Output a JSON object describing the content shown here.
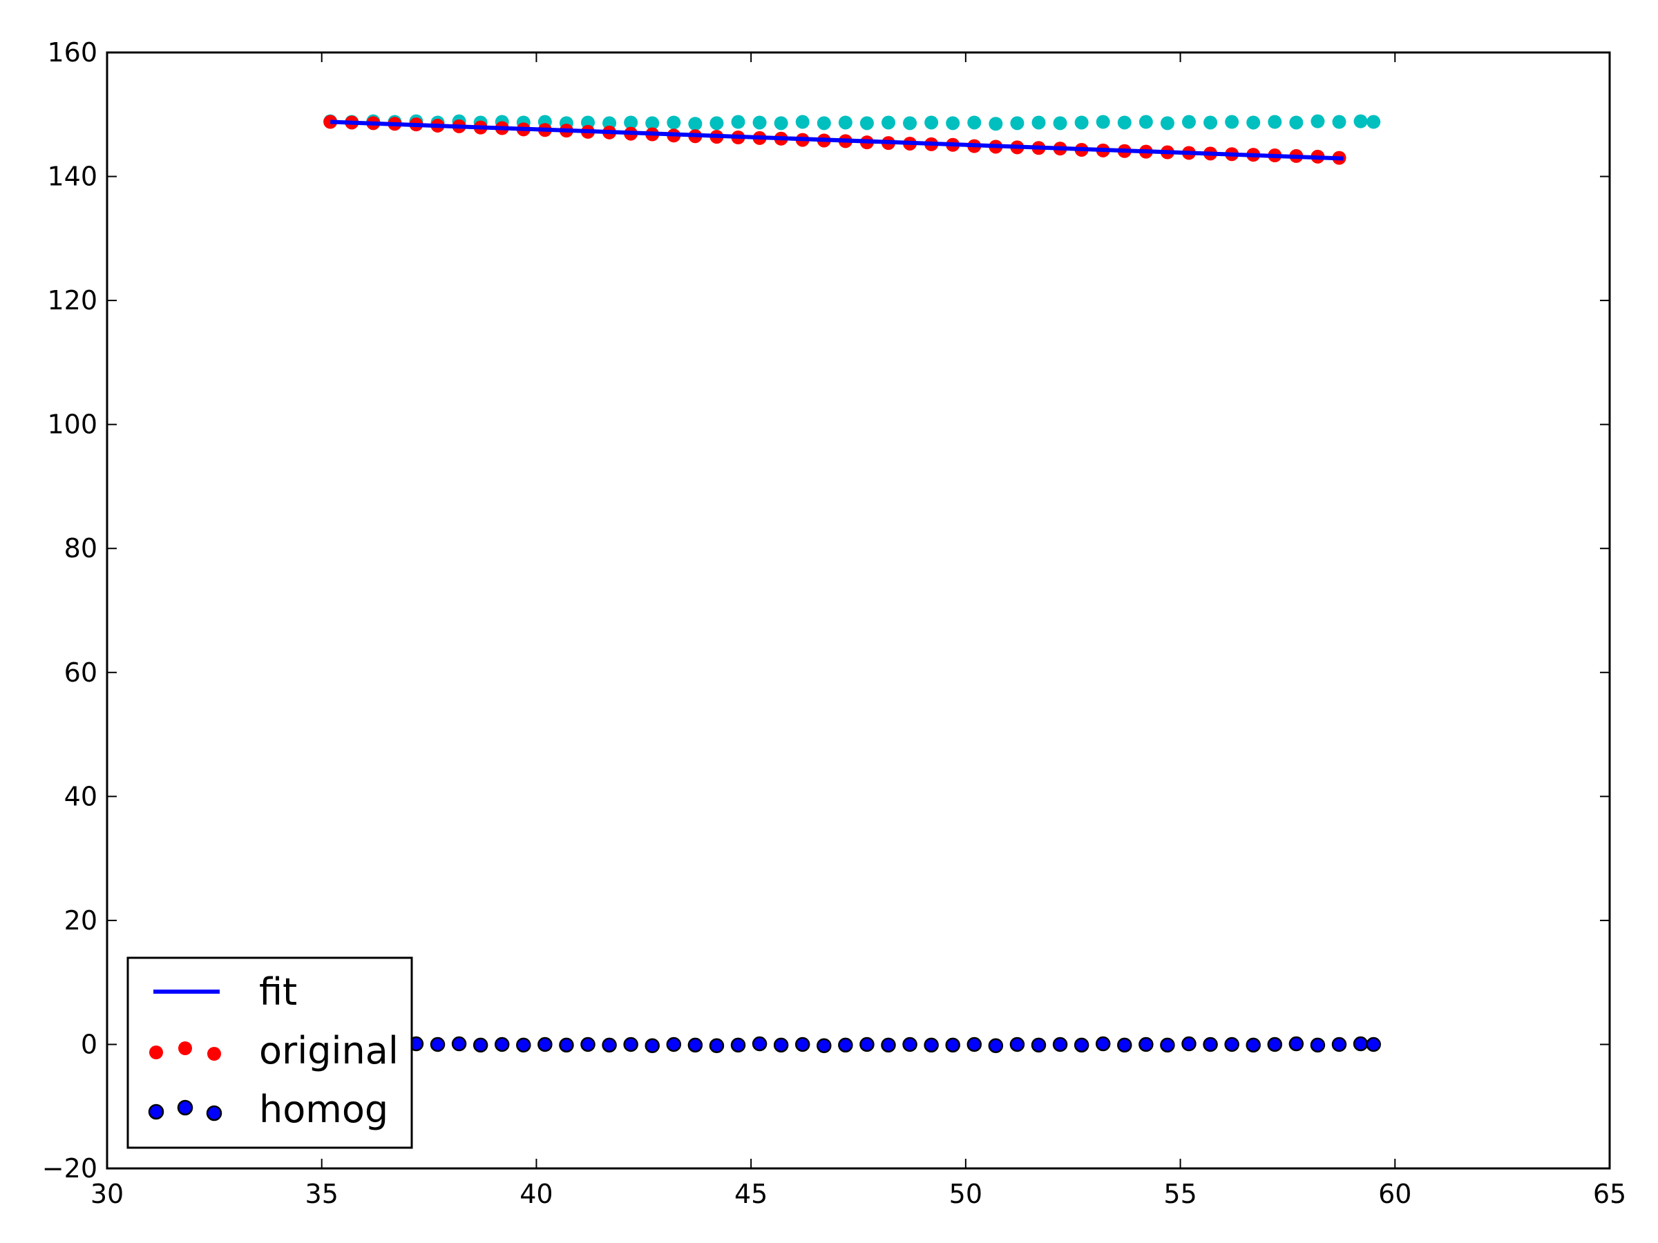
{
  "chart_data": {
    "type": "scatter",
    "title": "",
    "xlabel": "",
    "ylabel": "",
    "xlim": [
      30,
      65
    ],
    "ylim": [
      -20,
      160
    ],
    "x_ticks": [
      "30",
      "35",
      "40",
      "45",
      "50",
      "55",
      "60",
      "65"
    ],
    "y_ticks": [
      "−20",
      "0",
      "20",
      "40",
      "60",
      "80",
      "100",
      "120",
      "140",
      "160"
    ],
    "legend_position": "lower-left",
    "grid": false,
    "colors": {
      "fit": "#0000ff",
      "original": "#ff0000",
      "homog": "#0000ff",
      "cyan_series": "#00bfbf"
    },
    "series": [
      {
        "name": "fit",
        "kind": "line",
        "x": [
          35.2,
          58.8
        ],
        "y": [
          148.8,
          142.9
        ]
      },
      {
        "name": "original",
        "kind": "scatter",
        "x": [
          35.2,
          35.7,
          36.2,
          36.7,
          37.2,
          37.7,
          38.2,
          38.7,
          39.2,
          39.7,
          40.2,
          40.7,
          41.2,
          41.7,
          42.2,
          42.7,
          43.2,
          43.7,
          44.2,
          44.7,
          45.2,
          45.7,
          46.2,
          46.7,
          47.2,
          47.7,
          48.2,
          48.7,
          49.2,
          49.7,
          50.2,
          50.7,
          51.2,
          51.7,
          52.2,
          52.7,
          53.2,
          53.7,
          54.2,
          54.7,
          55.2,
          55.7,
          56.2,
          56.7,
          57.2,
          57.7,
          58.2,
          58.7
        ],
        "y": [
          148.8,
          148.7,
          148.6,
          148.5,
          148.4,
          148.2,
          148.1,
          147.9,
          147.8,
          147.6,
          147.5,
          147.4,
          147.2,
          147.1,
          146.9,
          146.8,
          146.6,
          146.5,
          146.4,
          146.3,
          146.2,
          146.1,
          145.9,
          145.8,
          145.7,
          145.5,
          145.4,
          145.3,
          145.2,
          145.1,
          144.9,
          144.8,
          144.7,
          144.6,
          144.5,
          144.3,
          144.2,
          144.1,
          144.0,
          143.9,
          143.8,
          143.7,
          143.6,
          143.5,
          143.4,
          143.3,
          143.2,
          143.0
        ]
      },
      {
        "name": "",
        "kind": "scatter",
        "x": [
          35.2,
          35.7,
          36.2,
          36.7,
          37.2,
          37.7,
          38.2,
          38.7,
          39.2,
          39.7,
          40.2,
          40.7,
          41.2,
          41.7,
          42.2,
          42.7,
          43.2,
          43.7,
          44.2,
          44.7,
          45.2,
          45.7,
          46.2,
          46.7,
          47.2,
          47.7,
          48.2,
          48.7,
          49.2,
          49.7,
          50.2,
          50.7,
          51.2,
          51.7,
          52.2,
          52.7,
          53.2,
          53.7,
          54.2,
          54.7,
          55.2,
          55.7,
          56.2,
          56.7,
          57.2,
          57.7,
          58.2,
          58.7,
          59.2,
          59.5
        ],
        "y": [
          148.9,
          148.8,
          148.9,
          148.8,
          148.9,
          148.7,
          148.9,
          148.7,
          148.8,
          148.7,
          148.8,
          148.6,
          148.7,
          148.6,
          148.7,
          148.6,
          148.7,
          148.5,
          148.6,
          148.8,
          148.7,
          148.6,
          148.8,
          148.6,
          148.7,
          148.6,
          148.7,
          148.6,
          148.7,
          148.6,
          148.7,
          148.5,
          148.6,
          148.7,
          148.6,
          148.7,
          148.8,
          148.7,
          148.8,
          148.6,
          148.8,
          148.7,
          148.8,
          148.7,
          148.8,
          148.7,
          148.9,
          148.8,
          148.9,
          148.8
        ]
      },
      {
        "name": "homog",
        "kind": "scatter",
        "x": [
          37.2,
          37.7,
          38.2,
          38.7,
          39.2,
          39.7,
          40.2,
          40.7,
          41.2,
          41.7,
          42.2,
          42.7,
          43.2,
          43.7,
          44.2,
          44.7,
          45.2,
          45.7,
          46.2,
          46.7,
          47.2,
          47.7,
          48.2,
          48.7,
          49.2,
          49.7,
          50.2,
          50.7,
          51.2,
          51.7,
          52.2,
          52.7,
          53.2,
          53.7,
          54.2,
          54.7,
          55.2,
          55.7,
          56.2,
          56.7,
          57.2,
          57.7,
          58.2,
          58.7,
          59.2,
          59.5
        ],
        "y": [
          0.1,
          0.0,
          0.1,
          -0.1,
          0.0,
          -0.1,
          0.0,
          -0.1,
          0.0,
          -0.1,
          0.0,
          -0.2,
          0.0,
          -0.1,
          -0.2,
          -0.1,
          0.1,
          -0.1,
          0.0,
          -0.2,
          -0.1,
          0.0,
          -0.1,
          0.0,
          -0.1,
          -0.1,
          0.0,
          -0.2,
          0.0,
          -0.1,
          0.0,
          -0.1,
          0.1,
          -0.1,
          0.0,
          -0.1,
          0.1,
          0.0,
          0.0,
          -0.1,
          0.0,
          0.1,
          -0.1,
          0.0,
          0.1,
          0.0
        ]
      }
    ]
  }
}
